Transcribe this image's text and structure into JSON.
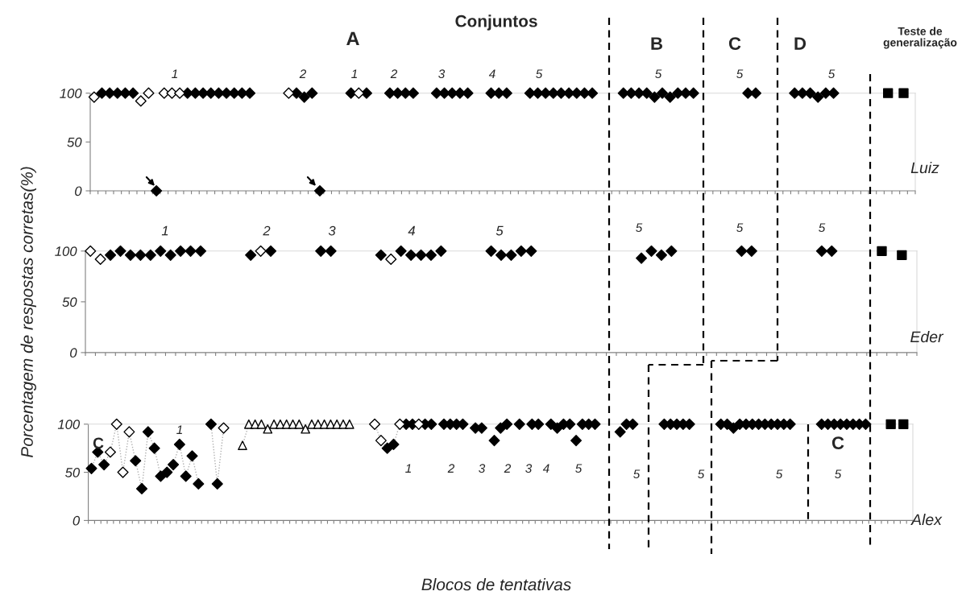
{
  "chart_data": [
    {
      "type": "scatter",
      "title": "Conjuntos",
      "annotations": [
        "A",
        "B",
        "C",
        "D",
        "Teste de\ngeneralização",
        "1",
        "2",
        "1",
        "2",
        "3",
        "4",
        "5",
        "5",
        "5",
        "5",
        "Luiz"
      ],
      "categories": [
        null,
        null,
        null,
        null,
        null,
        null,
        null,
        null,
        null,
        null,
        null,
        null,
        null,
        null,
        null,
        null,
        null,
        null,
        null,
        null,
        null,
        null,
        null,
        null,
        null,
        null,
        null,
        null,
        null,
        null,
        null,
        null,
        null,
        null,
        null,
        null,
        null,
        null,
        null,
        null,
        null,
        null,
        null,
        null,
        null,
        null,
        null,
        null,
        null,
        null,
        null,
        null,
        null,
        null,
        null,
        null,
        null,
        null,
        null,
        null,
        null,
        null,
        null,
        null,
        null,
        null,
        null,
        null,
        null,
        null,
        null,
        null,
        null,
        null,
        null,
        null,
        null,
        null,
        null,
        null,
        null,
        null,
        null,
        null,
        null,
        null,
        null,
        null,
        null,
        null,
        null,
        null,
        null,
        null,
        null,
        null,
        null,
        null,
        null,
        null,
        null,
        null,
        null,
        null,
        null,
        null
      ],
      "ylim": [
        0,
        100
      ],
      "yticks": [
        0,
        50,
        100
      ],
      "grid": false,
      "tick_labels": "y",
      "legend": false,
      "series": [
        {
          "marker": "diamond",
          "color": "#000000",
          "values": [
            null,
            100,
            100,
            100,
            100,
            100,
            null,
            null,
            0,
            null,
            null,
            null,
            100,
            100,
            100,
            100,
            100,
            100,
            100,
            100,
            100,
            null,
            null,
            null,
            null,
            null,
            100,
            96,
            100,
            0,
            null,
            null,
            null,
            100,
            null,
            100,
            null,
            null,
            100,
            100,
            100,
            100,
            null,
            null,
            100,
            100,
            100,
            100,
            100,
            null,
            null,
            100,
            100,
            100,
            null,
            null,
            100,
            100,
            100,
            100,
            100,
            100,
            100,
            100,
            100,
            null,
            null,
            null,
            100,
            100,
            100,
            100,
            96,
            100,
            96,
            100,
            100,
            100,
            null,
            null,
            null,
            null,
            null,
            null,
            100,
            100,
            null,
            null,
            null,
            null,
            100,
            100,
            100,
            96,
            100,
            100,
            null,
            null,
            null,
            null,
            null,
            null,
            null,
            null,
            null,
            null
          ]
        },
        {
          "marker": "diamond",
          "color": "#ffffff",
          "values": [
            96,
            null,
            null,
            null,
            null,
            null,
            92,
            100,
            null,
            100,
            100,
            100,
            null,
            null,
            null,
            null,
            null,
            null,
            null,
            null,
            null,
            null,
            null,
            null,
            null,
            100,
            null,
            null,
            null,
            null,
            null,
            null,
            null,
            null,
            100,
            null,
            null,
            null,
            null,
            null,
            null,
            null,
            null,
            null,
            null,
            null,
            null,
            null,
            null,
            null,
            null,
            null,
            null,
            null,
            null,
            null,
            null,
            null,
            null,
            null,
            null,
            null,
            null,
            null,
            null,
            null,
            null,
            null,
            null,
            null,
            null,
            null,
            null,
            null,
            null,
            null,
            null,
            null,
            null,
            null,
            null,
            null,
            null,
            null,
            null,
            null,
            null,
            null,
            null,
            null,
            null,
            null,
            null,
            null,
            null,
            null,
            null,
            null,
            null,
            null,
            null,
            null,
            null,
            null,
            null,
            null
          ]
        },
        {
          "type": "scatter",
          "marker": "square",
          "color": "#000000",
          "values": [
            null,
            null,
            null,
            null,
            null,
            null,
            null,
            null,
            null,
            null,
            null,
            null,
            null,
            null,
            null,
            null,
            null,
            null,
            null,
            null,
            null,
            null,
            null,
            null,
            null,
            null,
            null,
            null,
            null,
            null,
            null,
            null,
            null,
            null,
            null,
            null,
            null,
            null,
            null,
            null,
            null,
            null,
            null,
            null,
            null,
            null,
            null,
            null,
            null,
            null,
            null,
            null,
            null,
            null,
            null,
            null,
            null,
            null,
            null,
            null,
            null,
            null,
            null,
            null,
            null,
            null,
            null,
            null,
            null,
            null,
            null,
            null,
            null,
            null,
            null,
            null,
            null,
            null,
            null,
            null,
            null,
            null,
            null,
            null,
            null,
            null,
            null,
            null,
            null,
            null,
            null,
            null,
            null,
            null,
            null,
            null,
            null,
            null,
            null,
            null,
            null,
            null,
            100,
            null,
            100,
            null
          ]
        }
      ]
    },
    {
      "type": "scatter",
      "ylabel": "Porcentagem de respostas corretas(%)",
      "annotations": [
        "1",
        "2",
        "3",
        "4",
        "5",
        "5",
        "5",
        "5",
        "Eder"
      ],
      "categories": [
        null,
        null,
        null,
        null,
        null,
        null,
        null,
        null,
        null,
        null,
        null,
        null,
        null,
        null,
        null,
        null,
        null,
        null,
        null,
        null,
        null,
        null,
        null,
        null,
        null,
        null,
        null,
        null,
        null,
        null,
        null,
        null,
        null,
        null,
        null,
        null,
        null,
        null,
        null,
        null,
        null,
        null,
        null,
        null,
        null,
        null,
        null,
        null,
        null,
        null,
        null,
        null,
        null,
        null,
        null,
        null,
        null,
        null,
        null,
        null,
        null,
        null,
        null,
        null,
        null,
        null,
        null,
        null,
        null,
        null,
        null,
        null,
        null,
        null,
        null,
        null,
        null,
        null,
        null,
        null,
        null,
        null,
        null
      ],
      "ylim": [
        0,
        100
      ],
      "yticks": [
        0,
        50,
        100
      ],
      "grid": false,
      "tick_labels": "y",
      "legend": false,
      "series": [
        {
          "type": "scatter",
          "marker": "diamond",
          "color": "#000000",
          "values": [
            null,
            null,
            96,
            100,
            96,
            96,
            96,
            100,
            96,
            100,
            100,
            100,
            null,
            null,
            null,
            null,
            96,
            null,
            100,
            null,
            null,
            null,
            null,
            100,
            100,
            null,
            null,
            null,
            null,
            96,
            null,
            100,
            96,
            96,
            96,
            100,
            null,
            null,
            null,
            null,
            100,
            96,
            96,
            100,
            100,
            null,
            null,
            null,
            null,
            null,
            null,
            null,
            null,
            null,
            null,
            93,
            100,
            96,
            100,
            null,
            null,
            null,
            null,
            null,
            null,
            100,
            100,
            null,
            null,
            null,
            null,
            null,
            null,
            100,
            100,
            null,
            null,
            null,
            null,
            null,
            null,
            null,
            null
          ]
        },
        {
          "type": "scatter",
          "marker": "diamond",
          "color": "#ffffff",
          "values": [
            100,
            92,
            null,
            null,
            null,
            null,
            null,
            null,
            null,
            null,
            null,
            null,
            null,
            null,
            null,
            null,
            null,
            100,
            null,
            null,
            null,
            null,
            null,
            null,
            null,
            null,
            null,
            null,
            null,
            null,
            92,
            null,
            null,
            null,
            null,
            null,
            null,
            null,
            null,
            null,
            null,
            null,
            null,
            null,
            null,
            null,
            null,
            null,
            null,
            null,
            null,
            null,
            null,
            null,
            null,
            null,
            null,
            null,
            null,
            null,
            null,
            null,
            null,
            null,
            null,
            null,
            null,
            null,
            null,
            null,
            null,
            null,
            null,
            null,
            null,
            null,
            null,
            null,
            null,
            null,
            null,
            null,
            null
          ]
        },
        {
          "type": "scatter",
          "marker": "square",
          "color": "#000000",
          "values": [
            null,
            null,
            null,
            null,
            null,
            null,
            null,
            null,
            null,
            null,
            null,
            null,
            null,
            null,
            null,
            null,
            null,
            null,
            null,
            null,
            null,
            null,
            null,
            null,
            null,
            null,
            null,
            null,
            null,
            null,
            null,
            null,
            null,
            null,
            null,
            null,
            null,
            null,
            null,
            null,
            null,
            null,
            null,
            null,
            null,
            null,
            null,
            null,
            null,
            null,
            null,
            null,
            null,
            null,
            null,
            null,
            null,
            null,
            null,
            null,
            null,
            null,
            null,
            null,
            null,
            null,
            null,
            null,
            null,
            null,
            null,
            null,
            null,
            null,
            null,
            null,
            null,
            null,
            null,
            100,
            null,
            96,
            null
          ]
        }
      ]
    },
    {
      "type": "scatter",
      "xlabel": "Blocos de tentativas",
      "annotations": [
        "C",
        "1",
        "1",
        "2",
        "3",
        "2",
        "3",
        "4",
        "5",
        "5",
        "5",
        "5",
        "C",
        "5",
        "Alex"
      ],
      "categories": [
        null,
        null,
        null,
        null,
        null,
        null,
        null,
        null,
        null,
        null,
        null,
        null,
        null,
        null,
        null,
        null,
        null,
        null,
        null,
        null,
        null,
        null,
        null,
        null,
        null,
        null,
        null,
        null,
        null,
        null,
        null,
        null,
        null,
        null,
        null,
        null,
        null,
        null,
        null,
        null,
        null,
        null,
        null,
        null,
        null,
        null,
        null,
        null,
        null,
        null,
        null,
        null,
        null,
        null,
        null,
        null,
        null,
        null,
        null,
        null,
        null,
        null,
        null,
        null,
        null,
        null,
        null,
        null,
        null,
        null,
        null,
        null,
        null,
        null,
        null,
        null,
        null,
        null,
        null,
        null,
        null,
        null,
        null,
        null,
        null,
        null,
        null,
        null,
        null,
        null,
        null,
        null,
        null,
        null,
        null,
        null,
        null,
        null,
        null,
        null,
        null,
        null,
        null,
        null,
        null,
        null,
        null,
        null,
        null,
        null,
        null,
        null,
        null,
        null,
        null,
        null,
        null,
        null,
        null,
        null,
        null,
        null,
        null,
        null,
        null,
        null,
        null,
        null,
        null,
        null,
        null
      ],
      "ylim": [
        0,
        100
      ],
      "yticks": [
        0,
        50,
        100
      ],
      "grid": false,
      "tick_labels": "y",
      "legend": false,
      "series": [
        {
          "type": "line",
          "marker": "none",
          "line_style": "dotted",
          "color": "#b0b0b0",
          "values": [
            54,
            71,
            58,
            71,
            100,
            50,
            92,
            62,
            33,
            92,
            75,
            46,
            50,
            58,
            79,
            46,
            67,
            38,
            null,
            100,
            38,
            96,
            null,
            null,
            78,
            100,
            100,
            100,
            95,
            100,
            100,
            100,
            100,
            100,
            95,
            100,
            100,
            100,
            100,
            100,
            100,
            100,
            null,
            null,
            null,
            100,
            83,
            75,
            79,
            100,
            null,
            null,
            null,
            null,
            null,
            null,
            null,
            null,
            null,
            null,
            null,
            null,
            null,
            null,
            null,
            null,
            null,
            null,
            null,
            null,
            null,
            null,
            null,
            null,
            null,
            null,
            null,
            null,
            null,
            null,
            null,
            null,
            null,
            null,
            null,
            null,
            null,
            null,
            null,
            null,
            null,
            null,
            null,
            null,
            null,
            null,
            null,
            null,
            null,
            null,
            null,
            null,
            null,
            null,
            null,
            null,
            null,
            null,
            null,
            null,
            null,
            null,
            null,
            null,
            null,
            null,
            null,
            null,
            null,
            null,
            null,
            null,
            null,
            null,
            null,
            null,
            null,
            null,
            null,
            null,
            null
          ]
        },
        {
          "type": "scatter",
          "marker": "diamond",
          "color": "#000000",
          "values": [
            54,
            71,
            58,
            null,
            null,
            null,
            null,
            62,
            33,
            92,
            75,
            46,
            50,
            58,
            79,
            46,
            67,
            38,
            null,
            100,
            38,
            null,
            null,
            null,
            null,
            null,
            null,
            null,
            null,
            null,
            null,
            null,
            null,
            null,
            null,
            null,
            null,
            null,
            null,
            null,
            null,
            null,
            null,
            null,
            null,
            null,
            null,
            75,
            79,
            null,
            100,
            100,
            null,
            100,
            100,
            null,
            100,
            100,
            100,
            100,
            null,
            96,
            96,
            null,
            83,
            96,
            100,
            null,
            100,
            null,
            100,
            100,
            null,
            100,
            96,
            100,
            100,
            83,
            100,
            100,
            100,
            null,
            null,
            null,
            92,
            100,
            100,
            null,
            null,
            null,
            null,
            100,
            100,
            100,
            100,
            100,
            null,
            null,
            null,
            null,
            100,
            100,
            96,
            100,
            100,
            100,
            100,
            100,
            100,
            100,
            100,
            100,
            null,
            null,
            null,
            null,
            100,
            100,
            100,
            100,
            100,
            100,
            100,
            100,
            null,
            null,
            null,
            null,
            null,
            null,
            null
          ]
        },
        {
          "type": "scatter",
          "marker": "diamond",
          "color": "#ffffff",
          "values": [
            null,
            null,
            null,
            71,
            100,
            50,
            92,
            null,
            null,
            null,
            null,
            null,
            null,
            null,
            null,
            null,
            null,
            null,
            null,
            null,
            null,
            96,
            null,
            null,
            null,
            null,
            null,
            null,
            null,
            null,
            null,
            null,
            null,
            null,
            null,
            null,
            null,
            null,
            null,
            null,
            null,
            null,
            null,
            null,
            null,
            100,
            83,
            null,
            null,
            100,
            null,
            null,
            100,
            null,
            null,
            null,
            null,
            null,
            null,
            null,
            null,
            null,
            null,
            null,
            null,
            null,
            null,
            null,
            null,
            null,
            null,
            null,
            null,
            null,
            null,
            null,
            null,
            null,
            null,
            null,
            null,
            null,
            null,
            null,
            null,
            null,
            null,
            null,
            null,
            null,
            null,
            null,
            null,
            null,
            null,
            null,
            null,
            null,
            null,
            null,
            null,
            null,
            null,
            null,
            null,
            null,
            null,
            null,
            null,
            null,
            null,
            null,
            null,
            null,
            null,
            null,
            null,
            null,
            null,
            null,
            null,
            null,
            null,
            null,
            null,
            null,
            null,
            null,
            null,
            null,
            null
          ]
        },
        {
          "type": "scatter",
          "marker": "triangle",
          "color": "#ffffff",
          "values": [
            null,
            null,
            null,
            null,
            null,
            null,
            null,
            null,
            null,
            null,
            null,
            null,
            null,
            null,
            null,
            null,
            null,
            null,
            null,
            null,
            null,
            null,
            null,
            null,
            78,
            100,
            100,
            100,
            95,
            100,
            100,
            100,
            100,
            100,
            95,
            100,
            100,
            100,
            100,
            100,
            100,
            100,
            null,
            null,
            null,
            null,
            null,
            null,
            null,
            null,
            null,
            null,
            null,
            null,
            null,
            null,
            null,
            null,
            null,
            null,
            null,
            null,
            null,
            null,
            null,
            null,
            null,
            null,
            null,
            null,
            null,
            null,
            null,
            null,
            null,
            null,
            null,
            null,
            null,
            null,
            null,
            null,
            null,
            null,
            null,
            null,
            null,
            null,
            null,
            null,
            null,
            null,
            null,
            null,
            null,
            null,
            null,
            null,
            null,
            null,
            null,
            null,
            null,
            null,
            null,
            null,
            null,
            null,
            null,
            null,
            null,
            null,
            null,
            null,
            null,
            null,
            null,
            null,
            null,
            null,
            null,
            null,
            null,
            null,
            null,
            null,
            null,
            null,
            null,
            null,
            null
          ]
        },
        {
          "type": "scatter",
          "marker": "square",
          "color": "#000000",
          "values": [
            null,
            null,
            null,
            null,
            null,
            null,
            null,
            null,
            null,
            null,
            null,
            null,
            null,
            null,
            null,
            null,
            null,
            null,
            null,
            null,
            null,
            null,
            null,
            null,
            null,
            null,
            null,
            null,
            null,
            null,
            null,
            null,
            null,
            null,
            null,
            null,
            null,
            null,
            null,
            null,
            null,
            null,
            null,
            null,
            null,
            null,
            null,
            null,
            null,
            null,
            null,
            null,
            null,
            null,
            null,
            null,
            null,
            null,
            null,
            null,
            null,
            null,
            null,
            null,
            null,
            null,
            null,
            null,
            null,
            null,
            null,
            null,
            null,
            null,
            null,
            null,
            null,
            null,
            null,
            null,
            null,
            null,
            null,
            null,
            null,
            null,
            null,
            null,
            null,
            null,
            null,
            null,
            null,
            null,
            null,
            null,
            null,
            null,
            null,
            null,
            null,
            null,
            null,
            null,
            null,
            null,
            null,
            null,
            null,
            null,
            null,
            null,
            null,
            null,
            null,
            null,
            null,
            null,
            null,
            null,
            null,
            null,
            null,
            null,
            null,
            null,
            null,
            100,
            null,
            100,
            null
          ]
        }
      ]
    }
  ]
}
